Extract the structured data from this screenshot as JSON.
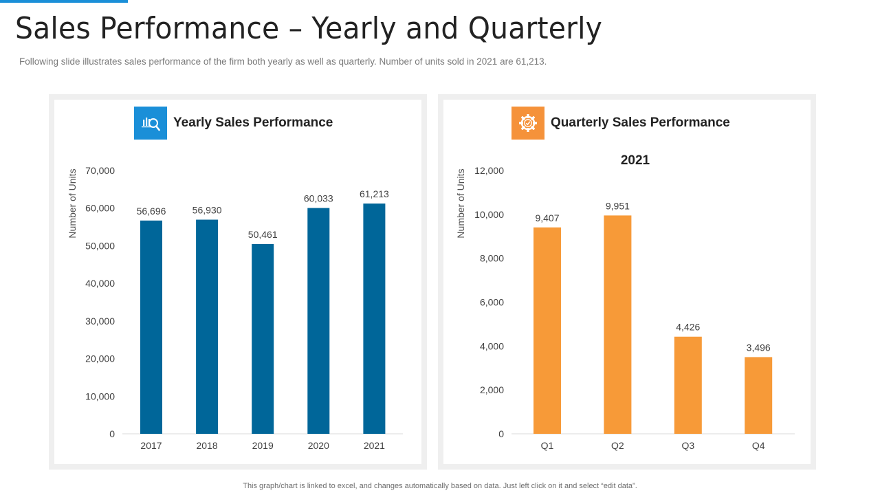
{
  "slide": {
    "title": "Sales Performance – Yearly and Quarterly",
    "subtitle": "Following slide illustrates sales performance of the firm both yearly as well as quarterly. Number of units sold in 2021 are 61,213.",
    "footer": "This graph/chart is linked to excel, and changes automatically based on data. Just left click on it and select “edit data”."
  },
  "panels": {
    "yearly": {
      "heading": "Yearly Sales Performance",
      "icon": "chart-magnifier-icon"
    },
    "quarterly": {
      "heading": "Quarterly Sales Performance",
      "icon": "gear-icon"
    }
  },
  "colors": {
    "accent": "#1a8fd8",
    "yearly_bar": "#006699",
    "quarterly_bar": "#f79a38",
    "quarterly_icon": "#f5923a"
  },
  "chart_data": [
    {
      "type": "bar",
      "title": "",
      "xlabel": "",
      "ylabel": "Number of Units",
      "categories": [
        "2017",
        "2018",
        "2019",
        "2020",
        "2021"
      ],
      "values": [
        56696,
        56930,
        50461,
        60033,
        61213
      ],
      "data_labels": [
        "56,696",
        "56,930",
        "50,461",
        "60,033",
        "61,213"
      ],
      "ylim": [
        0,
        70000
      ],
      "yticks": [
        0,
        10000,
        20000,
        30000,
        40000,
        50000,
        60000,
        70000
      ],
      "ytick_labels": [
        "0",
        "10,000",
        "20,000",
        "30,000",
        "40,000",
        "50,000",
        "60,000",
        "70,000"
      ],
      "grid": false
    },
    {
      "type": "bar",
      "title": "2021",
      "xlabel": "",
      "ylabel": "Number of Units",
      "categories": [
        "Q1",
        "Q2",
        "Q3",
        "Q4"
      ],
      "values": [
        9407,
        9951,
        4426,
        3496
      ],
      "data_labels": [
        "9,407",
        "9,951",
        "4,426",
        "3,496"
      ],
      "ylim": [
        0,
        12000
      ],
      "yticks": [
        0,
        2000,
        4000,
        6000,
        8000,
        10000,
        12000
      ],
      "ytick_labels": [
        "0",
        "2,000",
        "4,000",
        "6,000",
        "8,000",
        "10,000",
        "12,000"
      ],
      "grid": false
    }
  ]
}
